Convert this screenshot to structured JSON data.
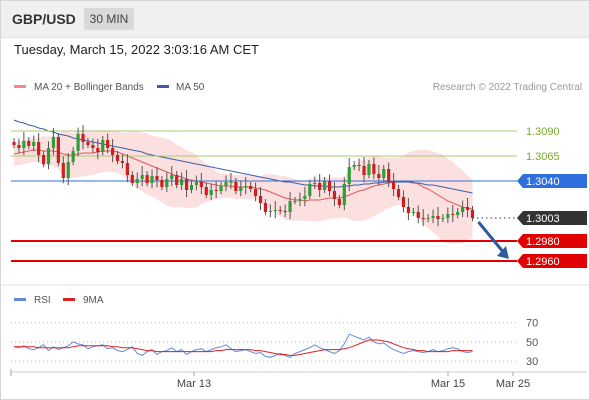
{
  "header": {
    "symbol": "GBP/USD",
    "timeframe": "30 MIN"
  },
  "datetime": "Tuesday, March 15, 2022 3:03:16 AM CET",
  "legend": {
    "ma20_label": "MA 20 + Bollinger Bands",
    "ma50_label": "MA 50",
    "credit": "Research © 2022 Trading Central"
  },
  "indicator_legend": {
    "rsi_label": "RSI",
    "ma9_label": "9MA"
  },
  "colors": {
    "bull": "#2e9e36",
    "bear": "#cc1f1f",
    "ma20": "#e05a5a",
    "ma50": "#3a5ea8",
    "band": "#fbd5d5",
    "resistance": "#a8cc6f",
    "pivot": "#2f6fdc",
    "support": "#e00000",
    "current": "#333333",
    "rsi": "#6688dd",
    "rsi_ma": "#dd2222",
    "arrow": "#2f5a9e"
  },
  "chart_data": [
    {
      "type": "candlestick",
      "title": "GBP/USD",
      "ylim": [
        1.2945,
        1.3125
      ],
      "x_labels": [
        "Mar 13",
        "Mar 15",
        "Mar 25"
      ],
      "closes": [
        1.3076,
        1.3073,
        1.308,
        1.3075,
        1.3079,
        1.3066,
        1.3057,
        1.3073,
        1.3084,
        1.3058,
        1.3043,
        1.3059,
        1.307,
        1.3087,
        1.3079,
        1.3076,
        1.3073,
        1.3069,
        1.3081,
        1.3073,
        1.3066,
        1.306,
        1.3058,
        1.3046,
        1.3038,
        1.3042,
        1.3046,
        1.3038,
        1.3045,
        1.3041,
        1.3034,
        1.3042,
        1.3046,
        1.3036,
        1.3042,
        1.3031,
        1.3036,
        1.3039,
        1.3034,
        1.3026,
        1.3031,
        1.303,
        1.3035,
        1.3039,
        1.3039,
        1.303,
        1.3034,
        1.3035,
        1.3032,
        1.3025,
        1.3018,
        1.3009,
        1.301,
        1.3011,
        1.301,
        1.3009,
        1.302,
        1.302,
        1.3022,
        1.3025,
        1.3037,
        1.3038,
        1.3031,
        1.304,
        1.303,
        1.3022,
        1.3016,
        1.3037,
        1.3054,
        1.3056,
        1.3055,
        1.3046,
        1.3057,
        1.3047,
        1.3043,
        1.3052,
        1.3039,
        1.3032,
        1.3024,
        1.3014,
        1.3008,
        1.3009,
        1.3003,
        1.3002,
        1.3003,
        1.3005,
        1.3002,
        1.3003,
        1.3007,
        1.3006,
        1.3009,
        1.3014,
        1.3011,
        1.3003
      ],
      "series": [
        {
          "name": "MA 20 + Bollinger Bands",
          "values": [
            1.3067,
            1.3068,
            1.3069,
            1.307,
            1.3071,
            1.3071,
            1.307,
            1.307,
            1.307,
            1.3069,
            1.3067,
            1.3066,
            1.3066,
            1.3067,
            1.3068,
            1.3068,
            1.3068,
            1.3069,
            1.307,
            1.307,
            1.307,
            1.3069,
            1.3067,
            1.3065,
            1.3063,
            1.3061,
            1.3059,
            1.3057,
            1.3055,
            1.3053,
            1.3051,
            1.3049,
            1.3047,
            1.3045,
            1.3044,
            1.3042,
            1.3041,
            1.304,
            1.3039,
            1.3038,
            1.3037,
            1.3036,
            1.3035,
            1.3035,
            1.3035,
            1.3034,
            1.3034,
            1.3034,
            1.3034,
            1.3033,
            1.3032,
            1.3031,
            1.3029,
            1.3027,
            1.3025,
            1.3023,
            1.3022,
            1.3021,
            1.3021,
            1.302,
            1.3021,
            1.3021,
            1.3021,
            1.3022,
            1.3023,
            1.3023,
            1.3023,
            1.3024,
            1.3026,
            1.3028,
            1.303,
            1.3031,
            1.3033,
            1.3035,
            1.3036,
            1.3037,
            1.3038,
            1.3039,
            1.304,
            1.304,
            1.304,
            1.3039,
            1.3037,
            1.3034,
            1.3032,
            1.3029,
            1.3026,
            1.3023,
            1.302,
            1.3018,
            1.3016,
            1.3014,
            1.3013,
            1.3012
          ]
        },
        {
          "name": "MA 50",
          "values": [
            1.3101,
            1.3099,
            1.3098,
            1.3096,
            1.3095,
            1.3093,
            1.3092,
            1.309,
            1.3089,
            1.3087,
            1.3086,
            1.3085,
            1.3083,
            1.3082,
            1.3081,
            1.308,
            1.3079,
            1.3078,
            1.3077,
            1.3076,
            1.3075,
            1.3074,
            1.3073,
            1.3072,
            1.3071,
            1.307,
            1.3069,
            1.3067,
            1.3066,
            1.3065,
            1.3064,
            1.3063,
            1.3062,
            1.3061,
            1.306,
            1.3059,
            1.3058,
            1.3057,
            1.3056,
            1.3055,
            1.3054,
            1.3053,
            1.3052,
            1.3051,
            1.305,
            1.3049,
            1.3048,
            1.3047,
            1.3046,
            1.3045,
            1.3044,
            1.3043,
            1.3042,
            1.3041,
            1.304,
            1.3039,
            1.3039,
            1.3038,
            1.3037,
            1.3036,
            1.3036,
            1.3035,
            1.3035,
            1.3035,
            1.3034,
            1.3034,
            1.3034,
            1.3035,
            1.3035,
            1.3036,
            1.3036,
            1.3037,
            1.3037,
            1.3038,
            1.3038,
            1.3039,
            1.3039,
            1.3039,
            1.3039,
            1.3039,
            1.3039,
            1.3038,
            1.3038,
            1.3037,
            1.3036,
            1.3036,
            1.3035,
            1.3034,
            1.3033,
            1.3032,
            1.3031,
            1.303,
            1.3029,
            1.3028
          ]
        }
      ],
      "levels": [
        {
          "label": "1.3090",
          "value": 1.309,
          "kind": "resistance"
        },
        {
          "label": "1.3065",
          "value": 1.3065,
          "kind": "resistance"
        },
        {
          "label": "1.3040",
          "value": 1.304,
          "kind": "pivot"
        },
        {
          "label": "1.3003",
          "value": 1.3003,
          "kind": "current"
        },
        {
          "label": "1.2980",
          "value": 1.298,
          "kind": "support"
        },
        {
          "label": "1.2960",
          "value": 1.296,
          "kind": "support"
        }
      ]
    },
    {
      "type": "line",
      "title": "RSI",
      "ylim": [
        25,
        78
      ],
      "yticks": [
        "70",
        "50",
        "30"
      ],
      "series": [
        {
          "name": "RSI",
          "values": [
            45,
            44,
            46,
            43,
            42,
            44,
            47,
            41,
            45,
            42,
            44,
            46,
            50,
            48,
            47,
            43,
            45,
            46,
            47,
            43,
            44,
            41,
            40,
            42,
            45,
            38,
            36,
            40,
            42,
            37,
            40,
            41,
            44,
            40,
            42,
            37,
            40,
            42,
            43,
            40,
            42,
            44,
            45,
            47,
            43,
            40,
            41,
            42,
            40,
            38,
            39,
            35,
            34,
            36,
            38,
            36,
            34,
            38,
            40,
            42,
            44,
            47,
            44,
            42,
            40,
            38,
            41,
            48,
            58,
            56,
            54,
            52,
            55,
            50,
            48,
            49,
            45,
            42,
            40,
            38,
            40,
            41,
            40,
            39,
            40,
            42,
            40,
            41,
            43,
            44,
            43,
            40,
            39,
            40
          ]
        },
        {
          "name": "9MA",
          "values": [
            45,
            45,
            45,
            45,
            45,
            44,
            44,
            44,
            44,
            44,
            44,
            44,
            45,
            46,
            46,
            46,
            46,
            46,
            46,
            46,
            45,
            45,
            44,
            44,
            44,
            43,
            42,
            41,
            41,
            40,
            40,
            40,
            40,
            40,
            40,
            40,
            40,
            40,
            40,
            40,
            40,
            41,
            41,
            42,
            42,
            42,
            42,
            42,
            42,
            41,
            41,
            40,
            39,
            38,
            37,
            37,
            36,
            36,
            37,
            38,
            39,
            40,
            41,
            42,
            42,
            42,
            42,
            43,
            44,
            46,
            48,
            50,
            52,
            52,
            52,
            51,
            50,
            48,
            46,
            44,
            43,
            42,
            41,
            41,
            40,
            40,
            40,
            40,
            40,
            41,
            41,
            41,
            41,
            41
          ]
        }
      ]
    }
  ]
}
